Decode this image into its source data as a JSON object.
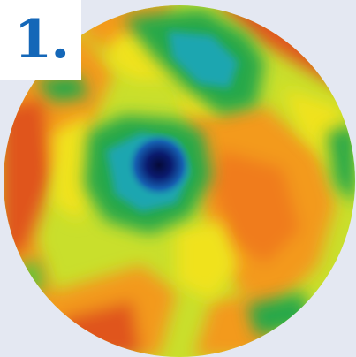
{
  "label": {
    "text": "1."
  },
  "colors": {
    "background": "#e4e8f2",
    "label_background": "#ffffff",
    "label_text": "#1467b8",
    "deep_blue": "#0a1b6e",
    "cyan": "#1fa6b0",
    "green": "#26a84a",
    "bright_green": "#5cc63a",
    "yellow_green": "#c9df2c",
    "yellow": "#f0e21e",
    "orange": "#f39a1c",
    "red": "#e0541c"
  }
}
